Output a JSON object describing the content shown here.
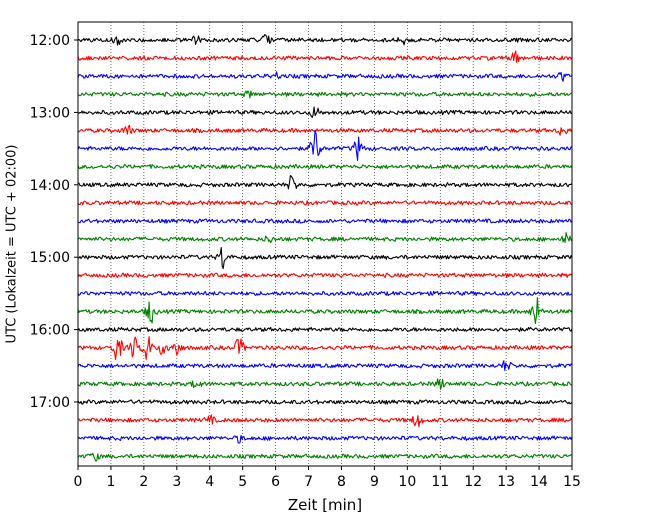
{
  "chart_data": {
    "type": "line",
    "title": "",
    "xlabel": "Zeit  [min]",
    "ylabel": "UTC (Lokalzeit = UTC + 02:00)",
    "xlim": [
      0,
      15
    ],
    "x_ticks": [
      0,
      1,
      2,
      3,
      4,
      5,
      6,
      7,
      8,
      9,
      10,
      11,
      12,
      13,
      14,
      15
    ],
    "y_tick_labels": [
      "12:00",
      "13:00",
      "14:00",
      "15:00",
      "16:00",
      "17:00"
    ],
    "grid": "vertical dotted",
    "line_colors": [
      "#000000",
      "#ff0000",
      "#0000ff",
      "#008000"
    ],
    "rows": [
      {
        "start": "12:00",
        "color": "#000000",
        "events": [
          {
            "t": 1.2,
            "amp": 0.18
          },
          {
            "t": 3.6,
            "amp": 0.22
          },
          {
            "t": 5.7,
            "amp": 0.2
          },
          {
            "t": 9.9,
            "amp": 0.2
          }
        ]
      },
      {
        "start": "12:15",
        "color": "#ff0000",
        "events": [
          {
            "t": 13.3,
            "amp": 0.35
          }
        ]
      },
      {
        "start": "12:30",
        "color": "#0000ff",
        "events": [
          {
            "t": 6.0,
            "amp": 0.15
          },
          {
            "t": 14.7,
            "amp": 0.2
          }
        ]
      },
      {
        "start": "12:45",
        "color": "#008000",
        "events": [
          {
            "t": 5.2,
            "amp": 0.15
          }
        ]
      },
      {
        "start": "13:00",
        "color": "#000000",
        "events": [
          {
            "t": 7.2,
            "amp": 0.3
          }
        ]
      },
      {
        "start": "13:15",
        "color": "#ff0000",
        "events": [
          {
            "t": 1.5,
            "amp": 0.25
          },
          {
            "t": 14.7,
            "amp": 0.25
          }
        ]
      },
      {
        "start": "13:30",
        "color": "#0000ff",
        "events": [
          {
            "t": 7.2,
            "amp": 1.0
          },
          {
            "t": 8.5,
            "amp": 0.55
          }
        ]
      },
      {
        "start": "13:45",
        "color": "#008000",
        "events": []
      },
      {
        "start": "14:00",
        "color": "#000000",
        "events": [
          {
            "t": 6.5,
            "amp": 0.45
          }
        ]
      },
      {
        "start": "14:15",
        "color": "#ff0000",
        "events": []
      },
      {
        "start": "14:30",
        "color": "#0000ff",
        "events": []
      },
      {
        "start": "14:45",
        "color": "#008000",
        "events": [
          {
            "t": 5.8,
            "amp": 0.15
          },
          {
            "t": 14.8,
            "amp": 0.25
          }
        ]
      },
      {
        "start": "15:00",
        "color": "#000000",
        "events": [
          {
            "t": 4.4,
            "amp": 0.6
          }
        ]
      },
      {
        "start": "15:15",
        "color": "#ff0000",
        "events": []
      },
      {
        "start": "15:30",
        "color": "#0000ff",
        "events": []
      },
      {
        "start": "15:45",
        "color": "#008000",
        "events": [
          {
            "t": 2.2,
            "amp": 0.6
          },
          {
            "t": 13.9,
            "amp": 0.8
          }
        ]
      },
      {
        "start": "16:00",
        "color": "#000000",
        "events": []
      },
      {
        "start": "16:15",
        "color": "#ff0000",
        "events": [
          {
            "t": 1.2,
            "amp": 0.7
          },
          {
            "t": 1.7,
            "amp": 0.5
          },
          {
            "t": 2.1,
            "amp": 0.65
          },
          {
            "t": 2.6,
            "amp": 0.45
          },
          {
            "t": 3.0,
            "amp": 0.4
          },
          {
            "t": 4.9,
            "amp": 0.45
          }
        ]
      },
      {
        "start": "16:30",
        "color": "#0000ff",
        "events": [
          {
            "t": 13.0,
            "amp": 0.25
          }
        ]
      },
      {
        "start": "16:45",
        "color": "#008000",
        "events": [
          {
            "t": 3.6,
            "amp": 0.2
          },
          {
            "t": 11.0,
            "amp": 0.25
          }
        ]
      },
      {
        "start": "17:00",
        "color": "#000000",
        "events": []
      },
      {
        "start": "17:15",
        "color": "#ff0000",
        "events": [
          {
            "t": 4.0,
            "amp": 0.2
          },
          {
            "t": 10.3,
            "amp": 0.35
          }
        ]
      },
      {
        "start": "17:30",
        "color": "#0000ff",
        "events": [
          {
            "t": 4.9,
            "amp": 0.15
          }
        ]
      },
      {
        "start": "17:45",
        "color": "#008000",
        "events": [
          {
            "t": 0.5,
            "amp": 0.2
          }
        ]
      }
    ]
  }
}
